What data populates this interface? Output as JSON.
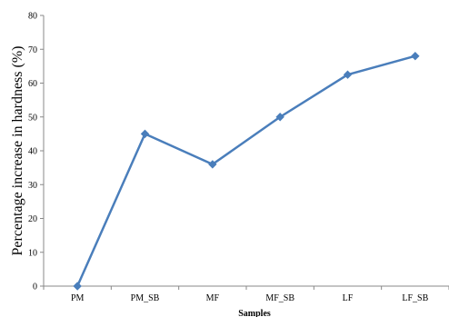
{
  "chart_data": {
    "type": "line",
    "categories": [
      "PM",
      "PM_SB",
      "MF",
      "MF_SB",
      "LF",
      "LF_SB"
    ],
    "series": [
      {
        "values": [
          0,
          45,
          36,
          50,
          62.5,
          68
        ]
      }
    ],
    "xlabel": "Samples",
    "ylabel": "Percentage increase in hardness (%)",
    "ylim": [
      0,
      80
    ],
    "yticks": [
      0,
      10,
      20,
      30,
      40,
      50,
      60,
      70,
      80
    ],
    "grid": false,
    "legend": "none",
    "line_color": "#4a7ebb",
    "marker": "diamond"
  }
}
